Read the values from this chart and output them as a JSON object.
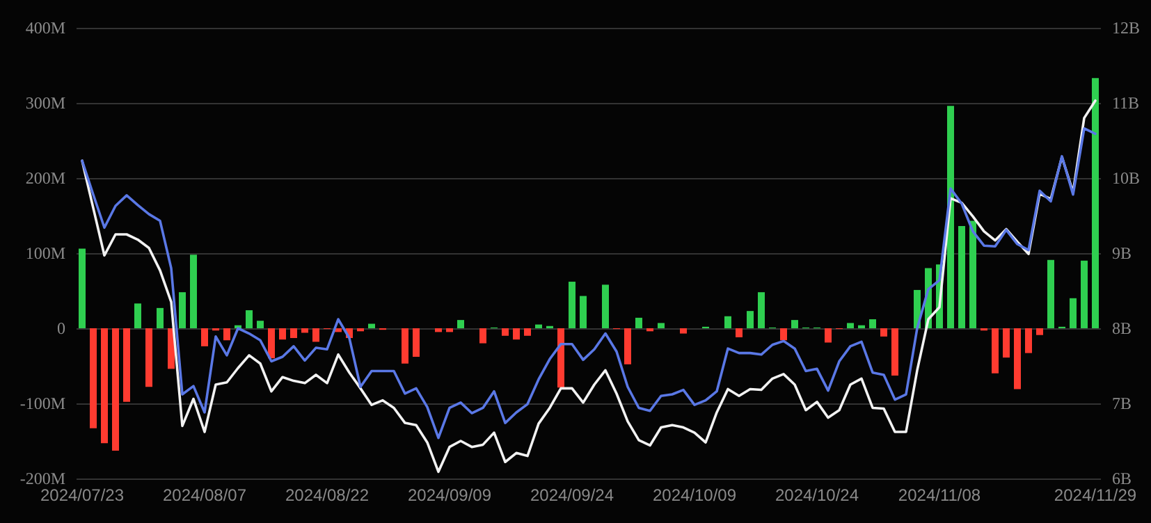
{
  "chart_data": {
    "type": "bar",
    "categories": [
      "2024/07/23",
      null,
      null,
      null,
      null,
      null,
      null,
      null,
      null,
      null,
      null,
      "2024/08/07",
      null,
      null,
      null,
      null,
      null,
      null,
      null,
      null,
      null,
      null,
      "2024/08/22",
      null,
      null,
      null,
      null,
      null,
      null,
      null,
      null,
      null,
      null,
      "2024/09/09",
      null,
      null,
      null,
      null,
      null,
      null,
      null,
      null,
      null,
      null,
      "2024/09/24",
      null,
      null,
      null,
      null,
      null,
      null,
      null,
      null,
      null,
      null,
      "2024/10/09",
      null,
      null,
      null,
      null,
      null,
      null,
      null,
      null,
      null,
      null,
      "2024/10/24",
      null,
      null,
      null,
      null,
      null,
      null,
      null,
      null,
      null,
      null,
      "2024/11/08",
      null,
      null,
      null,
      null,
      null,
      null,
      null,
      null,
      null,
      null,
      null,
      null,
      null,
      "2024/11/29"
    ],
    "series": [
      {
        "values": [
          106,
          -133,
          -153,
          -163,
          -98,
          33,
          -78,
          27,
          -54,
          48,
          98,
          -24,
          -3,
          -16,
          4,
          24,
          10,
          -40,
          -15,
          -13,
          -6,
          -18,
          -1,
          -5,
          -13,
          -4,
          6,
          -2,
          0,
          -47,
          -38,
          0,
          -5,
          -5,
          11,
          0,
          -20,
          1,
          -10,
          -15,
          -10,
          5,
          3,
          -79,
          62,
          43,
          0,
          58,
          -1,
          -48,
          14,
          -4,
          7,
          0,
          -7,
          0,
          2,
          0,
          16,
          -12,
          23,
          48,
          1,
          -16,
          11,
          1,
          1,
          -19,
          -1,
          7,
          4,
          12,
          -11,
          -63,
          0,
          51,
          80,
          85,
          296,
          136,
          143,
          -3,
          -60,
          -39,
          -81,
          -33,
          -9,
          91,
          2,
          40,
          90,
          333
        ],
        "colors": [
          "#2fcf50",
          "#ff3b30",
          "#ff3b30",
          "#ff3b30",
          "#ff3b30",
          "#2fcf50",
          "#ff3b30",
          "#2fcf50",
          "#ff3b30",
          "#2fcf50",
          "#2fcf50",
          "#ff3b30",
          "#ff3b30",
          "#ff3b30",
          "#2fcf50",
          "#2fcf50",
          "#2fcf50",
          "#ff3b30",
          "#ff3b30",
          "#ff3b30",
          "#ff3b30",
          "#ff3b30",
          "#ff3b30",
          "#ff3b30",
          "#ff3b30",
          "#ff3b30",
          "#2fcf50",
          "#ff3b30",
          "#2fcf50",
          "#ff3b30",
          "#ff3b30",
          "#2fcf50",
          "#ff3b30",
          "#ff3b30",
          "#2fcf50",
          "#2fcf50",
          "#ff3b30",
          "#2fcf50",
          "#ff3b30",
          "#ff3b30",
          "#ff3b30",
          "#2fcf50",
          "#2fcf50",
          "#ff3b30",
          "#2fcf50",
          "#2fcf50",
          "#2fcf50",
          "#2fcf50",
          "#ff3b30",
          "#ff3b30",
          "#2fcf50",
          "#ff3b30",
          "#2fcf50",
          "#2fcf50",
          "#ff3b30",
          "#2fcf50",
          "#2fcf50",
          "#2fcf50",
          "#2fcf50",
          "#ff3b30",
          "#2fcf50",
          "#2fcf50",
          "#2fcf50",
          "#ff3b30",
          "#2fcf50",
          "#2fcf50",
          "#2fcf50",
          "#ff3b30",
          "#ff3b30",
          "#2fcf50",
          "#2fcf50",
          "#2fcf50",
          "#ff3b30",
          "#ff3b30",
          "#2fcf50",
          "#2fcf50",
          "#2fcf50",
          "#2fcf50",
          "#2fcf50",
          "#2fcf50",
          "#2fcf50",
          "#ff3b30",
          "#ff3b30",
          "#ff3b30",
          "#ff3b30",
          "#ff3b30",
          "#ff3b30",
          "#2fcf50",
          "#2fcf50",
          "#2fcf50",
          "#2fcf50",
          "#2fcf50"
        ]
      },
      {
        "type": "line",
        "axis": "y2",
        "color": "#f2f2f2",
        "values": [
          10.23,
          9.6,
          8.97,
          9.25,
          9.25,
          9.18,
          9.07,
          8.77,
          8.35,
          6.7,
          7.06,
          6.62,
          7.25,
          7.28,
          7.47,
          7.64,
          7.53,
          7.16,
          7.35,
          7.3,
          7.27,
          7.38,
          7.27,
          7.65,
          7.41,
          7.2,
          6.98,
          7.04,
          6.94,
          6.74,
          6.71,
          6.48,
          6.09,
          6.42,
          6.5,
          6.42,
          6.45,
          6.61,
          6.22,
          6.34,
          6.3,
          6.73,
          6.94,
          7.2,
          7.2,
          7.01,
          7.25,
          7.44,
          7.13,
          6.76,
          6.51,
          6.44,
          6.68,
          6.71,
          6.68,
          6.61,
          6.48,
          6.88,
          7.19,
          7.1,
          7.19,
          7.18,
          7.33,
          7.39,
          7.25,
          6.91,
          7.02,
          6.81,
          6.91,
          7.25,
          7.33,
          6.94,
          6.93,
          6.62,
          6.62,
          7.44,
          8.12,
          8.28,
          9.73,
          9.67,
          9.49,
          9.29,
          9.17,
          9.32,
          9.15,
          8.99,
          9.79,
          9.72,
          10.28,
          9.81,
          10.8,
          11.03
        ]
      },
      {
        "type": "line",
        "axis": "y2",
        "color": "#5a78e6",
        "values": [
          10.23,
          9.78,
          9.34,
          9.63,
          9.77,
          9.64,
          9.52,
          9.43,
          8.8,
          7.12,
          7.23,
          6.88,
          7.89,
          7.64,
          8.0,
          7.93,
          7.84,
          7.56,
          7.62,
          7.76,
          7.57,
          7.74,
          7.72,
          8.12,
          7.87,
          7.22,
          7.43,
          7.43,
          7.43,
          7.13,
          7.2,
          6.95,
          6.54,
          6.94,
          7.01,
          6.87,
          6.94,
          7.16,
          6.74,
          6.88,
          6.99,
          7.32,
          7.59,
          7.79,
          7.79,
          7.58,
          7.72,
          7.93,
          7.69,
          7.22,
          6.94,
          6.9,
          7.1,
          7.12,
          7.18,
          6.98,
          7.04,
          7.16,
          7.73,
          7.67,
          7.67,
          7.65,
          7.78,
          7.83,
          7.73,
          7.43,
          7.46,
          7.17,
          7.56,
          7.76,
          7.82,
          7.41,
          7.38,
          7.05,
          7.12,
          8.0,
          8.52,
          8.64,
          9.86,
          9.66,
          9.29,
          9.1,
          9.09,
          9.31,
          9.12,
          9.04,
          9.83,
          9.69,
          10.29,
          9.78,
          10.66,
          10.59
        ]
      }
    ],
    "ylim": [
      -200,
      400
    ],
    "yticks": [
      {
        "value": -200,
        "label": "-200M"
      },
      {
        "value": -100,
        "label": "-100M"
      },
      0,
      {
        "value": 100,
        "label": "100M"
      },
      {
        "value": 200,
        "label": "200M"
      },
      {
        "value": 300,
        "label": "300M"
      },
      {
        "value": 400,
        "label": "400M"
      }
    ],
    "y2lim": [
      6,
      12
    ],
    "y2ticks": [
      {
        "value": 6,
        "label": "6B"
      },
      {
        "value": 7,
        "label": "7B"
      },
      {
        "value": 8,
        "label": "8B"
      },
      {
        "value": 9,
        "label": "9B"
      },
      {
        "value": 10,
        "label": "10B"
      },
      {
        "value": 11,
        "label": "11B"
      },
      {
        "value": 12,
        "label": "12B"
      }
    ],
    "grid": "y",
    "marker": "none",
    "line_style": "solid"
  }
}
